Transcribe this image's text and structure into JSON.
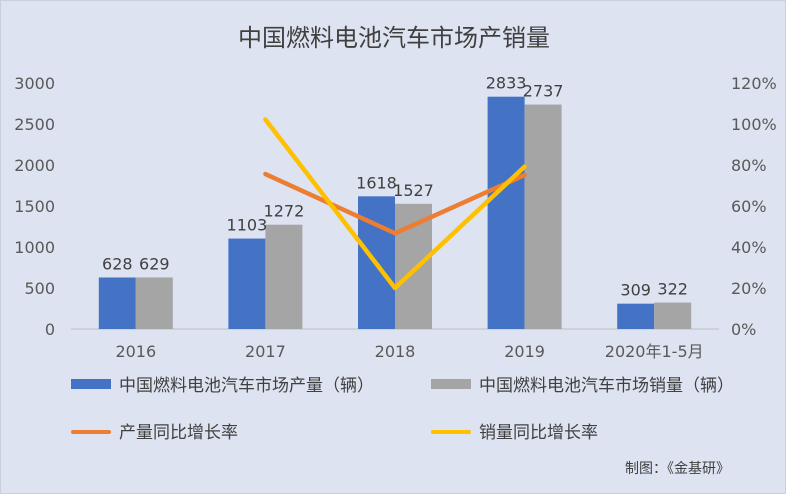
{
  "chart_data": {
    "type": "bar",
    "title": "中国燃料电池汽车市场产销量",
    "categories": [
      "2016",
      "2017",
      "2018",
      "2019",
      "2020年1-5月"
    ],
    "series": [
      {
        "name": "中国燃料电池汽车市场产量（辆）",
        "type": "bar",
        "axis": "left",
        "color": "#4472c4",
        "values": [
          628,
          1103,
          1618,
          2833,
          309
        ],
        "labels": [
          "628",
          "1103",
          "1618",
          "2833",
          "309"
        ]
      },
      {
        "name": "中国燃料电池汽车市场销量（辆）",
        "type": "bar",
        "axis": "left",
        "color": "#a5a5a5",
        "values": [
          629,
          1272,
          1527,
          2737,
          322
        ],
        "labels": [
          "629",
          "1272",
          "1527",
          "2737",
          "322"
        ]
      },
      {
        "name": "产量同比增长率",
        "type": "line",
        "axis": "right",
        "color": "#ed7d31",
        "values": [
          null,
          75.6,
          46.7,
          75.1,
          null
        ]
      },
      {
        "name": "销量同比增长率",
        "type": "line",
        "axis": "right",
        "color": "#ffc000",
        "values": [
          null,
          102.2,
          20.0,
          79.2,
          null
        ]
      }
    ],
    "left_axis": {
      "min": 0,
      "max": 3000,
      "ticks": [
        "0",
        "500",
        "1000",
        "1500",
        "2000",
        "2500",
        "3000"
      ]
    },
    "right_axis": {
      "min": 0,
      "max": 120,
      "ticks": [
        "0%",
        "20%",
        "40%",
        "60%",
        "80%",
        "100%",
        "120%"
      ]
    },
    "grid": false,
    "legend_position": "bottom"
  },
  "source_note": "制图：《金基研》"
}
